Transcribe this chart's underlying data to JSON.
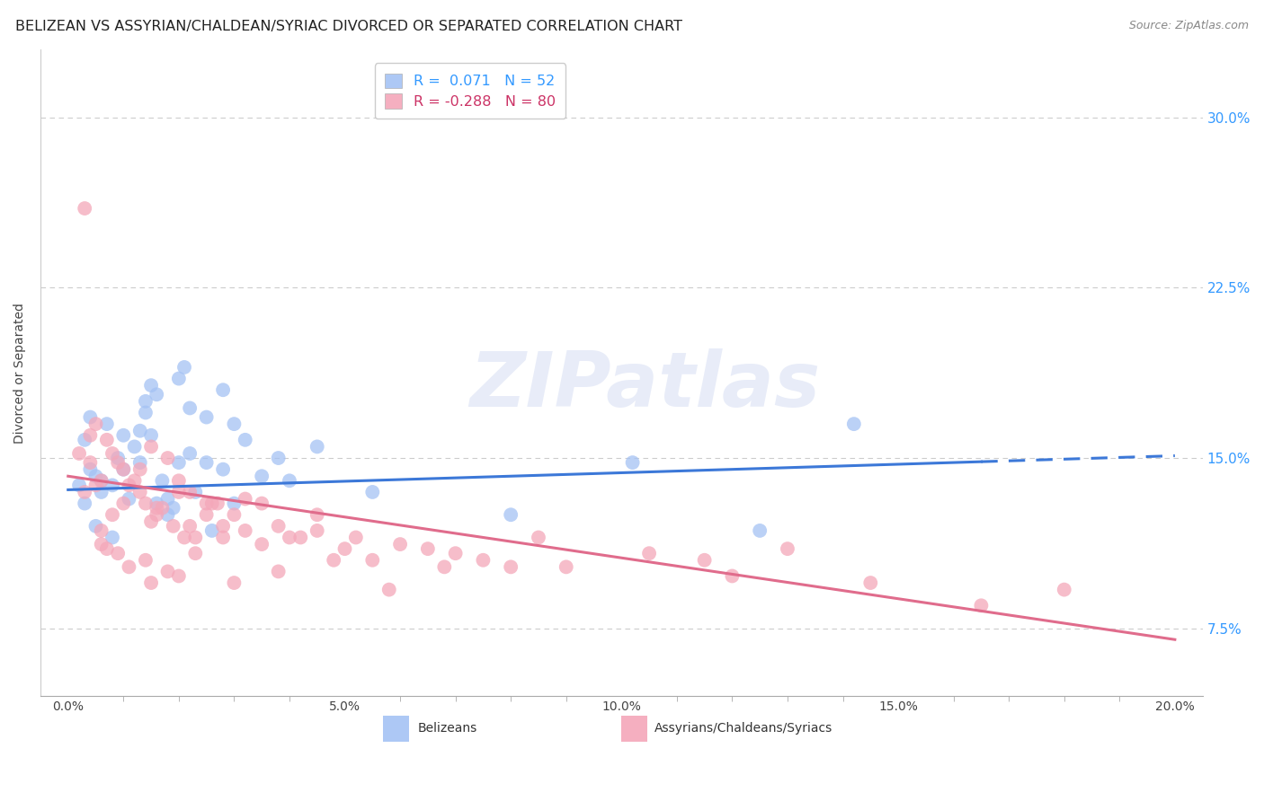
{
  "title": "BELIZEAN VS ASSYRIAN/CHALDEAN/SYRIAC DIVORCED OR SEPARATED CORRELATION CHART",
  "source_text": "Source: ZipAtlas.com",
  "ylabel": "Divorced or Separated",
  "xlabel_ticks": [
    "0.0%",
    "",
    "",
    "",
    "",
    "5.0%",
    "",
    "",
    "",
    "",
    "10.0%",
    "",
    "",
    "",
    "",
    "15.0%",
    "",
    "",
    "",
    "",
    "20.0%"
  ],
  "xlabel_vals": [
    0.0,
    1.0,
    2.0,
    3.0,
    4.0,
    5.0,
    6.0,
    7.0,
    8.0,
    9.0,
    10.0,
    11.0,
    12.0,
    13.0,
    14.0,
    15.0,
    16.0,
    17.0,
    18.0,
    19.0,
    20.0
  ],
  "xlabel_label_vals": [
    0.0,
    5.0,
    10.0,
    15.0,
    20.0
  ],
  "xlabel_label_ticks": [
    "0.0%",
    "5.0%",
    "10.0%",
    "15.0%",
    "20.0%"
  ],
  "ylabel_ticks": [
    "7.5%",
    "15.0%",
    "22.5%",
    "30.0%"
  ],
  "ylabel_vals": [
    7.5,
    15.0,
    22.5,
    30.0
  ],
  "xlim": [
    -0.5,
    20.5
  ],
  "ylim": [
    4.5,
    33.0
  ],
  "blue_color": "#a4c2f4",
  "pink_color": "#f4a7b9",
  "blue_line_color": "#3c78d8",
  "pink_line_color": "#e06c8c",
  "watermark": "ZIPatlas",
  "blue_scatter": [
    [
      0.5,
      14.2
    ],
    [
      0.8,
      13.8
    ],
    [
      1.0,
      16.0
    ],
    [
      1.2,
      15.5
    ],
    [
      1.3,
      14.8
    ],
    [
      1.4,
      17.5
    ],
    [
      1.5,
      18.2
    ],
    [
      1.6,
      17.8
    ],
    [
      1.8,
      12.5
    ],
    [
      2.0,
      18.5
    ],
    [
      2.1,
      19.0
    ],
    [
      2.2,
      17.2
    ],
    [
      2.5,
      16.8
    ],
    [
      2.8,
      18.0
    ],
    [
      0.3,
      13.0
    ],
    [
      0.4,
      14.5
    ],
    [
      0.6,
      13.5
    ],
    [
      0.9,
      15.0
    ],
    [
      1.1,
      13.2
    ],
    [
      1.7,
      14.0
    ],
    [
      3.0,
      16.5
    ],
    [
      3.2,
      15.8
    ],
    [
      0.2,
      13.8
    ],
    [
      0.7,
      16.5
    ],
    [
      1.9,
      12.8
    ],
    [
      2.3,
      13.5
    ],
    [
      2.6,
      11.8
    ],
    [
      0.5,
      12.0
    ],
    [
      0.8,
      11.5
    ],
    [
      1.0,
      14.5
    ],
    [
      1.5,
      16.0
    ],
    [
      2.0,
      14.8
    ],
    [
      3.5,
      14.2
    ],
    [
      4.5,
      15.5
    ],
    [
      1.3,
      16.2
    ],
    [
      1.6,
      13.0
    ],
    [
      2.2,
      15.2
    ],
    [
      0.3,
      15.8
    ],
    [
      0.6,
      14.0
    ],
    [
      1.4,
      17.0
    ],
    [
      2.8,
      14.5
    ],
    [
      3.8,
      15.0
    ],
    [
      10.2,
      14.8
    ],
    [
      14.2,
      16.5
    ],
    [
      12.5,
      11.8
    ],
    [
      0.4,
      16.8
    ],
    [
      1.8,
      13.2
    ],
    [
      2.5,
      14.8
    ],
    [
      4.0,
      14.0
    ],
    [
      5.5,
      13.5
    ],
    [
      8.0,
      12.5
    ],
    [
      3.0,
      13.0
    ]
  ],
  "pink_scatter": [
    [
      0.3,
      26.0
    ],
    [
      0.5,
      16.5
    ],
    [
      0.6,
      14.0
    ],
    [
      0.8,
      15.2
    ],
    [
      1.0,
      14.5
    ],
    [
      1.2,
      14.0
    ],
    [
      1.3,
      13.5
    ],
    [
      1.4,
      13.0
    ],
    [
      1.5,
      15.5
    ],
    [
      1.6,
      12.5
    ],
    [
      1.8,
      15.0
    ],
    [
      2.0,
      14.0
    ],
    [
      2.2,
      13.5
    ],
    [
      2.5,
      13.0
    ],
    [
      2.8,
      12.0
    ],
    [
      0.4,
      16.0
    ],
    [
      0.7,
      15.8
    ],
    [
      0.9,
      14.8
    ],
    [
      1.1,
      13.8
    ],
    [
      1.7,
      12.8
    ],
    [
      3.0,
      12.5
    ],
    [
      3.2,
      13.2
    ],
    [
      0.2,
      15.2
    ],
    [
      0.5,
      13.8
    ],
    [
      1.9,
      12.0
    ],
    [
      2.3,
      11.5
    ],
    [
      2.6,
      13.0
    ],
    [
      0.6,
      11.8
    ],
    [
      0.8,
      12.5
    ],
    [
      1.0,
      13.0
    ],
    [
      1.5,
      12.2
    ],
    [
      2.0,
      13.5
    ],
    [
      3.5,
      13.0
    ],
    [
      4.5,
      11.8
    ],
    [
      1.3,
      14.5
    ],
    [
      1.6,
      12.8
    ],
    [
      2.2,
      12.0
    ],
    [
      0.3,
      13.5
    ],
    [
      0.6,
      11.2
    ],
    [
      1.4,
      10.5
    ],
    [
      2.8,
      11.5
    ],
    [
      3.8,
      12.0
    ],
    [
      4.0,
      11.5
    ],
    [
      5.0,
      11.0
    ],
    [
      6.0,
      11.2
    ],
    [
      7.0,
      10.8
    ],
    [
      8.5,
      11.5
    ],
    [
      9.0,
      10.2
    ],
    [
      10.5,
      10.8
    ],
    [
      11.5,
      10.5
    ],
    [
      13.0,
      11.0
    ],
    [
      14.5,
      9.5
    ],
    [
      16.5,
      8.5
    ],
    [
      18.0,
      9.2
    ],
    [
      0.4,
      14.8
    ],
    [
      0.7,
      11.0
    ],
    [
      1.1,
      10.2
    ],
    [
      2.5,
      12.5
    ],
    [
      3.0,
      9.5
    ],
    [
      3.5,
      11.2
    ],
    [
      4.5,
      12.5
    ],
    [
      5.5,
      10.5
    ],
    [
      2.0,
      9.8
    ],
    [
      1.8,
      10.0
    ],
    [
      2.3,
      10.8
    ],
    [
      6.5,
      11.0
    ],
    [
      7.5,
      10.5
    ],
    [
      2.7,
      13.0
    ],
    [
      3.2,
      11.8
    ],
    [
      4.2,
      11.5
    ],
    [
      5.8,
      9.2
    ],
    [
      8.0,
      10.2
    ],
    [
      12.0,
      9.8
    ],
    [
      0.9,
      10.8
    ],
    [
      1.5,
      9.5
    ],
    [
      3.8,
      10.0
    ],
    [
      2.1,
      11.5
    ],
    [
      4.8,
      10.5
    ],
    [
      5.2,
      11.5
    ],
    [
      6.8,
      10.2
    ]
  ],
  "blue_line_x0": 0.0,
  "blue_line_y0": 13.6,
  "blue_line_x1": 20.0,
  "blue_line_y1": 15.1,
  "blue_dashed_start_x": 16.5,
  "pink_line_x0": 0.0,
  "pink_line_y0": 14.2,
  "pink_line_x1": 20.0,
  "pink_line_y1": 7.0,
  "legend_label_blue": "R =  0.071   N = 52",
  "legend_label_pink": "R = -0.288   N = 80",
  "title_fontsize": 11.5,
  "label_fontsize": 10,
  "tick_fontsize": 10,
  "background_color": "#ffffff",
  "grid_color": "#cccccc"
}
